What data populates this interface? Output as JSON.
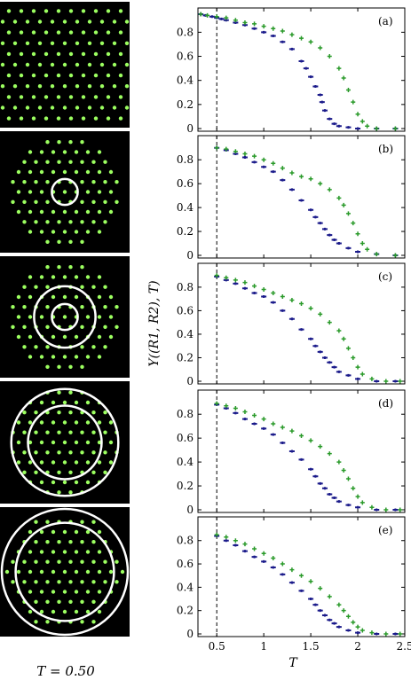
{
  "temperature_label": "T = 0.50",
  "colors": {
    "series_inner": "#1a1a8a",
    "series_outer": "#2a9a2a",
    "background_panels": "#000000",
    "particle": "#9cff60",
    "ring": "#ffffff"
  },
  "image_panels": [
    {
      "name": "full-crystal",
      "rings": []
    },
    {
      "name": "inner-circle",
      "rings": [
        0.22
      ]
    },
    {
      "name": "two-rings-small",
      "rings": [
        0.22,
        0.52
      ]
    },
    {
      "name": "two-rings-mid",
      "rings": [
        0.62,
        0.9
      ]
    },
    {
      "name": "two-rings-large",
      "rings": [
        0.78,
        1.0
      ]
    }
  ],
  "chart_data": {
    "type": "scatter",
    "ylabel": "Y((R1, R2), T)",
    "xlabel": "T",
    "xlim": [
      0.3,
      2.5
    ],
    "ylim": [
      0,
      0.95
    ],
    "xticks": [
      "0.5",
      "1",
      "1.5",
      "2",
      "2.5"
    ],
    "yticks": [
      "0",
      "0.2",
      "0.4",
      "0.6",
      "0.8"
    ],
    "reference_line_x": 0.5,
    "panels": [
      {
        "label": "(a)",
        "series": [
          {
            "color": "blue",
            "points": [
              [
                0.33,
                0.95
              ],
              [
                0.38,
                0.94
              ],
              [
                0.45,
                0.93
              ],
              [
                0.5,
                0.92
              ],
              [
                0.55,
                0.91
              ],
              [
                0.6,
                0.9
              ],
              [
                0.7,
                0.88
              ],
              [
                0.8,
                0.86
              ],
              [
                0.9,
                0.83
              ],
              [
                1.0,
                0.8
              ],
              [
                1.1,
                0.77
              ],
              [
                1.2,
                0.72
              ],
              [
                1.3,
                0.66
              ],
              [
                1.4,
                0.56
              ],
              [
                1.45,
                0.5
              ],
              [
                1.5,
                0.43
              ],
              [
                1.55,
                0.35
              ],
              [
                1.6,
                0.28
              ],
              [
                1.62,
                0.22
              ],
              [
                1.65,
                0.15
              ],
              [
                1.7,
                0.08
              ],
              [
                1.75,
                0.04
              ],
              [
                1.8,
                0.02
              ],
              [
                1.9,
                0.01
              ],
              [
                2.0,
                0.0
              ],
              [
                2.2,
                0.0
              ],
              [
                2.4,
                0.0
              ]
            ]
          },
          {
            "color": "green",
            "points": [
              [
                0.33,
                0.95
              ],
              [
                0.4,
                0.94
              ],
              [
                0.5,
                0.93
              ],
              [
                0.6,
                0.92
              ],
              [
                0.7,
                0.9
              ],
              [
                0.8,
                0.88
              ],
              [
                0.9,
                0.87
              ],
              [
                1.0,
                0.85
              ],
              [
                1.1,
                0.83
              ],
              [
                1.2,
                0.81
              ],
              [
                1.3,
                0.78
              ],
              [
                1.4,
                0.75
              ],
              [
                1.5,
                0.72
              ],
              [
                1.6,
                0.67
              ],
              [
                1.7,
                0.6
              ],
              [
                1.8,
                0.5
              ],
              [
                1.85,
                0.42
              ],
              [
                1.9,
                0.32
              ],
              [
                1.95,
                0.22
              ],
              [
                2.0,
                0.12
              ],
              [
                2.05,
                0.06
              ],
              [
                2.1,
                0.02
              ],
              [
                2.2,
                0.0
              ],
              [
                2.4,
                0.0
              ]
            ]
          }
        ]
      },
      {
        "label": "(b)",
        "series": [
          {
            "color": "blue",
            "points": [
              [
                0.5,
                0.9
              ],
              [
                0.6,
                0.88
              ],
              [
                0.7,
                0.85
              ],
              [
                0.8,
                0.82
              ],
              [
                0.9,
                0.78
              ],
              [
                1.0,
                0.74
              ],
              [
                1.1,
                0.7
              ],
              [
                1.2,
                0.63
              ],
              [
                1.3,
                0.55
              ],
              [
                1.4,
                0.46
              ],
              [
                1.5,
                0.38
              ],
              [
                1.55,
                0.32
              ],
              [
                1.6,
                0.27
              ],
              [
                1.65,
                0.22
              ],
              [
                1.7,
                0.17
              ],
              [
                1.75,
                0.13
              ],
              [
                1.8,
                0.1
              ],
              [
                1.9,
                0.06
              ],
              [
                2.0,
                0.03
              ],
              [
                2.2,
                0.01
              ],
              [
                2.4,
                0.0
              ]
            ]
          },
          {
            "color": "green",
            "points": [
              [
                0.5,
                0.9
              ],
              [
                0.6,
                0.89
              ],
              [
                0.7,
                0.87
              ],
              [
                0.8,
                0.85
              ],
              [
                0.9,
                0.83
              ],
              [
                1.0,
                0.8
              ],
              [
                1.1,
                0.77
              ],
              [
                1.2,
                0.73
              ],
              [
                1.3,
                0.69
              ],
              [
                1.4,
                0.66
              ],
              [
                1.5,
                0.64
              ],
              [
                1.6,
                0.6
              ],
              [
                1.7,
                0.55
              ],
              [
                1.8,
                0.48
              ],
              [
                1.85,
                0.42
              ],
              [
                1.9,
                0.35
              ],
              [
                1.95,
                0.27
              ],
              [
                2.0,
                0.18
              ],
              [
                2.05,
                0.1
              ],
              [
                2.1,
                0.05
              ],
              [
                2.2,
                0.01
              ],
              [
                2.4,
                0.0
              ]
            ]
          }
        ]
      },
      {
        "label": "(c)",
        "series": [
          {
            "color": "blue",
            "points": [
              [
                0.5,
                0.89
              ],
              [
                0.6,
                0.86
              ],
              [
                0.7,
                0.83
              ],
              [
                0.8,
                0.79
              ],
              [
                0.9,
                0.75
              ],
              [
                1.0,
                0.72
              ],
              [
                1.1,
                0.67
              ],
              [
                1.2,
                0.6
              ],
              [
                1.3,
                0.53
              ],
              [
                1.4,
                0.44
              ],
              [
                1.5,
                0.36
              ],
              [
                1.55,
                0.3
              ],
              [
                1.6,
                0.25
              ],
              [
                1.65,
                0.2
              ],
              [
                1.7,
                0.16
              ],
              [
                1.75,
                0.12
              ],
              [
                1.8,
                0.08
              ],
              [
                1.9,
                0.05
              ],
              [
                2.0,
                0.02
              ],
              [
                2.2,
                0.0
              ],
              [
                2.4,
                0.0
              ]
            ]
          },
          {
            "color": "green",
            "points": [
              [
                0.5,
                0.9
              ],
              [
                0.6,
                0.88
              ],
              [
                0.7,
                0.86
              ],
              [
                0.8,
                0.84
              ],
              [
                0.9,
                0.81
              ],
              [
                1.0,
                0.78
              ],
              [
                1.1,
                0.75
              ],
              [
                1.2,
                0.72
              ],
              [
                1.3,
                0.69
              ],
              [
                1.4,
                0.66
              ],
              [
                1.5,
                0.62
              ],
              [
                1.6,
                0.57
              ],
              [
                1.7,
                0.5
              ],
              [
                1.8,
                0.43
              ],
              [
                1.85,
                0.36
              ],
              [
                1.9,
                0.28
              ],
              [
                1.95,
                0.2
              ],
              [
                2.0,
                0.12
              ],
              [
                2.05,
                0.06
              ],
              [
                2.15,
                0.02
              ],
              [
                2.3,
                0.0
              ],
              [
                2.45,
                0.0
              ]
            ]
          }
        ]
      },
      {
        "label": "(d)",
        "series": [
          {
            "color": "blue",
            "points": [
              [
                0.5,
                0.88
              ],
              [
                0.6,
                0.85
              ],
              [
                0.7,
                0.81
              ],
              [
                0.8,
                0.76
              ],
              [
                0.9,
                0.72
              ],
              [
                1.0,
                0.68
              ],
              [
                1.1,
                0.63
              ],
              [
                1.2,
                0.56
              ],
              [
                1.3,
                0.49
              ],
              [
                1.4,
                0.42
              ],
              [
                1.5,
                0.34
              ],
              [
                1.55,
                0.28
              ],
              [
                1.6,
                0.22
              ],
              [
                1.65,
                0.18
              ],
              [
                1.7,
                0.13
              ],
              [
                1.75,
                0.1
              ],
              [
                1.8,
                0.07
              ],
              [
                1.9,
                0.04
              ],
              [
                2.0,
                0.02
              ],
              [
                2.2,
                0.0
              ],
              [
                2.4,
                0.0
              ]
            ]
          },
          {
            "color": "green",
            "points": [
              [
                0.5,
                0.89
              ],
              [
                0.6,
                0.87
              ],
              [
                0.7,
                0.85
              ],
              [
                0.8,
                0.82
              ],
              [
                0.9,
                0.79
              ],
              [
                1.0,
                0.76
              ],
              [
                1.1,
                0.72
              ],
              [
                1.2,
                0.69
              ],
              [
                1.3,
                0.66
              ],
              [
                1.4,
                0.62
              ],
              [
                1.5,
                0.58
              ],
              [
                1.6,
                0.53
              ],
              [
                1.7,
                0.47
              ],
              [
                1.8,
                0.4
              ],
              [
                1.85,
                0.33
              ],
              [
                1.9,
                0.26
              ],
              [
                1.95,
                0.18
              ],
              [
                2.0,
                0.11
              ],
              [
                2.05,
                0.06
              ],
              [
                2.15,
                0.02
              ],
              [
                2.3,
                0.0
              ],
              [
                2.45,
                0.0
              ]
            ]
          }
        ]
      },
      {
        "label": "(e)",
        "series": [
          {
            "color": "blue",
            "points": [
              [
                0.5,
                0.84
              ],
              [
                0.6,
                0.8
              ],
              [
                0.7,
                0.76
              ],
              [
                0.8,
                0.71
              ],
              [
                0.9,
                0.66
              ],
              [
                1.0,
                0.62
              ],
              [
                1.1,
                0.57
              ],
              [
                1.2,
                0.51
              ],
              [
                1.3,
                0.44
              ],
              [
                1.4,
                0.37
              ],
              [
                1.5,
                0.3
              ],
              [
                1.55,
                0.25
              ],
              [
                1.6,
                0.2
              ],
              [
                1.65,
                0.16
              ],
              [
                1.7,
                0.12
              ],
              [
                1.75,
                0.09
              ],
              [
                1.8,
                0.06
              ],
              [
                1.9,
                0.03
              ],
              [
                2.0,
                0.01
              ],
              [
                2.2,
                0.0
              ],
              [
                2.4,
                0.0
              ]
            ]
          },
          {
            "color": "green",
            "points": [
              [
                0.5,
                0.85
              ],
              [
                0.6,
                0.83
              ],
              [
                0.7,
                0.8
              ],
              [
                0.8,
                0.77
              ],
              [
                0.9,
                0.73
              ],
              [
                1.0,
                0.69
              ],
              [
                1.1,
                0.65
              ],
              [
                1.2,
                0.6
              ],
              [
                1.3,
                0.55
              ],
              [
                1.4,
                0.5
              ],
              [
                1.5,
                0.45
              ],
              [
                1.6,
                0.39
              ],
              [
                1.7,
                0.32
              ],
              [
                1.8,
                0.25
              ],
              [
                1.85,
                0.2
              ],
              [
                1.9,
                0.15
              ],
              [
                1.95,
                0.1
              ],
              [
                2.0,
                0.06
              ],
              [
                2.05,
                0.03
              ],
              [
                2.15,
                0.01
              ],
              [
                2.3,
                0.0
              ],
              [
                2.45,
                0.0
              ]
            ]
          }
        ]
      }
    ]
  }
}
